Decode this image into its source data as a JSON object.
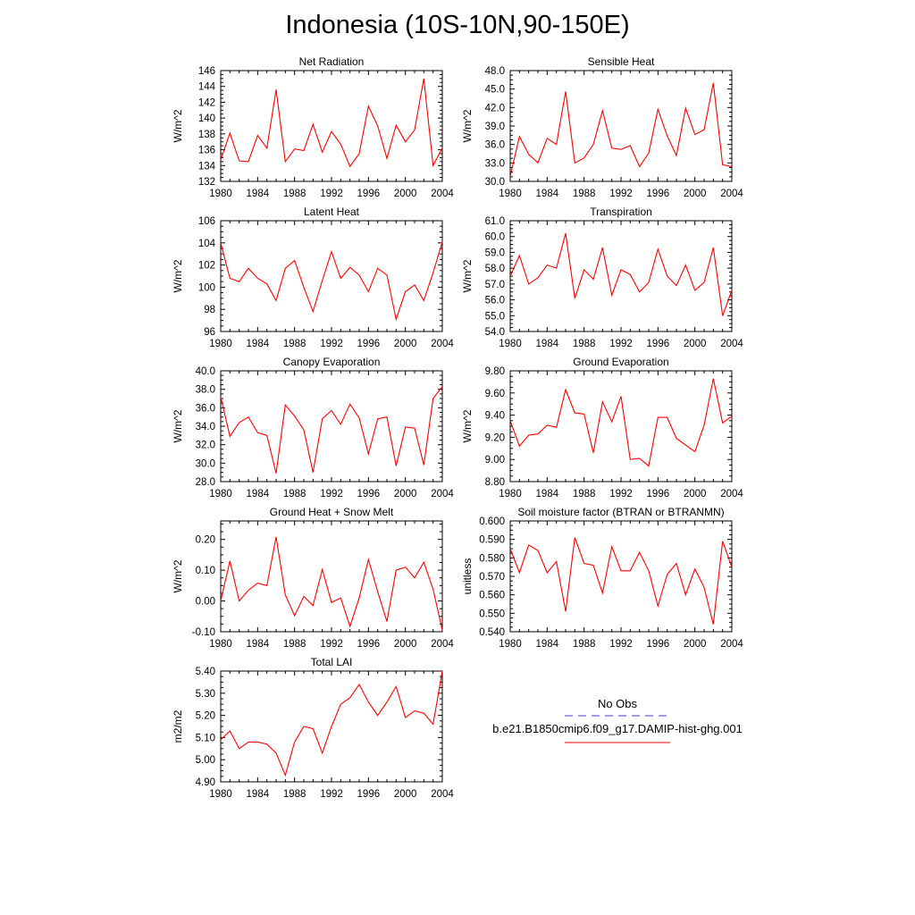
{
  "title": "Indonesia (10S-10N,90-150E)",
  "legend": {
    "items": [
      {
        "label": "No Obs",
        "color": "#3a3ad0",
        "dash": true
      },
      {
        "label": "b.e21.B1850cmip6.f09_g17.DAMIP-hist-ghg.001",
        "color": "#ff0000",
        "dash": false
      }
    ]
  },
  "chart_data": [
    {
      "type": "line",
      "title": "Net Radiation",
      "ylabel": "W/m^2",
      "xlim": [
        1980,
        2004
      ],
      "ylim": [
        132,
        146
      ],
      "xticks": [
        1980,
        1984,
        1988,
        1992,
        1996,
        2000,
        2004
      ],
      "yticks": [
        132,
        134,
        136,
        138,
        140,
        142,
        144,
        146
      ],
      "yfmt": 0,
      "series": [
        {
          "name": "b.e21.B1850cmip6.f09_g17.DAMIP-hist-ghg.001",
          "color": "#ff0000",
          "x": [
            1980,
            1981,
            1982,
            1983,
            1984,
            1985,
            1986,
            1987,
            1988,
            1989,
            1990,
            1991,
            1992,
            1993,
            1994,
            1995,
            1996,
            1997,
            1998,
            1999,
            2000,
            2001,
            2002,
            2003,
            2004
          ],
          "y": [
            134.7,
            138.1,
            134.6,
            134.5,
            137.8,
            136.2,
            143.6,
            134.5,
            136.1,
            135.9,
            139.2,
            135.7,
            138.3,
            136.7,
            133.9,
            135.5,
            141.5,
            139.0,
            134.9,
            139.1,
            137.0,
            138.5,
            145.0,
            134.0,
            136.2
          ]
        }
      ]
    },
    {
      "type": "line",
      "title": "Sensible Heat",
      "ylabel": "W/m^2",
      "xlim": [
        1980,
        2004
      ],
      "ylim": [
        30,
        48
      ],
      "xticks": [
        1980,
        1984,
        1988,
        1992,
        1996,
        2000,
        2004
      ],
      "yticks": [
        30,
        33,
        36,
        39,
        42,
        45,
        48
      ],
      "yfmt": 1,
      "series": [
        {
          "name": "b.e21.B1850cmip6.f09_g17.DAMIP-hist-ghg.001",
          "color": "#ff0000",
          "x": [
            1980,
            1981,
            1982,
            1983,
            1984,
            1985,
            1986,
            1987,
            1988,
            1989,
            1990,
            1991,
            1992,
            1993,
            1994,
            1995,
            1996,
            1997,
            1998,
            1999,
            2000,
            2001,
            2002,
            2003,
            2004
          ],
          "y": [
            30.8,
            37.3,
            34.4,
            33.0,
            37.0,
            36.0,
            44.6,
            33.0,
            33.8,
            36.0,
            41.5,
            35.4,
            35.2,
            35.8,
            32.4,
            34.6,
            41.7,
            37.4,
            34.2,
            41.9,
            37.6,
            38.4,
            46.0,
            32.7,
            32.4
          ]
        }
      ]
    },
    {
      "type": "line",
      "title": "Latent Heat",
      "ylabel": "W/m^2",
      "xlim": [
        1980,
        2004
      ],
      "ylim": [
        96,
        106
      ],
      "xticks": [
        1980,
        1984,
        1988,
        1992,
        1996,
        2000,
        2004
      ],
      "yticks": [
        96,
        98,
        100,
        102,
        104,
        106
      ],
      "yfmt": 0,
      "series": [
        {
          "name": "b.e21.B1850cmip6.f09_g17.DAMIP-hist-ghg.001",
          "color": "#ff0000",
          "x": [
            1980,
            1981,
            1982,
            1983,
            1984,
            1985,
            1986,
            1987,
            1988,
            1989,
            1990,
            1991,
            1992,
            1993,
            1994,
            1995,
            1996,
            1997,
            1998,
            1999,
            2000,
            2001,
            2002,
            2003,
            2004
          ],
          "y": [
            104.0,
            100.8,
            100.5,
            101.7,
            100.8,
            100.3,
            98.8,
            101.7,
            102.4,
            100.0,
            97.8,
            100.6,
            103.2,
            100.8,
            101.8,
            101.1,
            99.6,
            101.7,
            101.1,
            97.1,
            99.6,
            100.2,
            98.8,
            101.3,
            104.1
          ]
        }
      ]
    },
    {
      "type": "line",
      "title": "Transpiration",
      "ylabel": "W/m^2",
      "xlim": [
        1980,
        2004
      ],
      "ylim": [
        54,
        61
      ],
      "xticks": [
        1980,
        1984,
        1988,
        1992,
        1996,
        2000,
        2004
      ],
      "yticks": [
        54,
        55,
        56,
        57,
        58,
        59,
        60,
        61
      ],
      "yfmt": 1,
      "series": [
        {
          "name": "b.e21.B1850cmip6.f09_g17.DAMIP-hist-ghg.001",
          "color": "#ff0000",
          "x": [
            1980,
            1981,
            1982,
            1983,
            1984,
            1985,
            1986,
            1987,
            1988,
            1989,
            1990,
            1991,
            1992,
            1993,
            1994,
            1995,
            1996,
            1997,
            1998,
            1999,
            2000,
            2001,
            2002,
            2003,
            2004
          ],
          "y": [
            57.5,
            58.8,
            57.0,
            57.4,
            58.2,
            58.0,
            60.2,
            56.1,
            57.9,
            57.3,
            59.3,
            56.3,
            57.9,
            57.6,
            56.5,
            57.1,
            59.2,
            57.5,
            56.9,
            58.2,
            56.6,
            57.1,
            59.3,
            55.0,
            56.6
          ]
        }
      ]
    },
    {
      "type": "line",
      "title": "Canopy Evaporation",
      "ylabel": "W/m^2",
      "xlim": [
        1980,
        2004
      ],
      "ylim": [
        28,
        40
      ],
      "xticks": [
        1980,
        1984,
        1988,
        1992,
        1996,
        2000,
        2004
      ],
      "yticks": [
        28,
        30,
        32,
        34,
        36,
        38,
        40
      ],
      "yfmt": 1,
      "series": [
        {
          "name": "b.e21.B1850cmip6.f09_g17.DAMIP-hist-ghg.001",
          "color": "#ff0000",
          "x": [
            1980,
            1981,
            1982,
            1983,
            1984,
            1985,
            1986,
            1987,
            1988,
            1989,
            1990,
            1991,
            1992,
            1993,
            1994,
            1995,
            1996,
            1997,
            1998,
            1999,
            2000,
            2001,
            2002,
            2003,
            2004
          ],
          "y": [
            37.2,
            32.9,
            34.4,
            35.0,
            33.3,
            33.0,
            28.9,
            36.3,
            35.1,
            33.6,
            29.0,
            34.8,
            35.7,
            34.2,
            36.4,
            34.9,
            31.0,
            34.8,
            35.0,
            29.7,
            33.9,
            33.8,
            29.8,
            37.0,
            38.3
          ]
        }
      ]
    },
    {
      "type": "line",
      "title": "Ground Evaporation",
      "ylabel": "W/m^2",
      "xlim": [
        1980,
        2004
      ],
      "ylim": [
        8.8,
        9.8
      ],
      "xticks": [
        1980,
        1984,
        1988,
        1992,
        1996,
        2000,
        2004
      ],
      "yticks": [
        8.8,
        9.0,
        9.2,
        9.4,
        9.6,
        9.8
      ],
      "yfmt": 2,
      "series": [
        {
          "name": "b.e21.B1850cmip6.f09_g17.DAMIP-hist-ghg.001",
          "color": "#ff0000",
          "x": [
            1980,
            1981,
            1982,
            1983,
            1984,
            1985,
            1986,
            1987,
            1988,
            1989,
            1990,
            1991,
            1992,
            1993,
            1994,
            1995,
            1996,
            1997,
            1998,
            1999,
            2000,
            2001,
            2002,
            2003,
            2004
          ],
          "y": [
            9.35,
            9.12,
            9.22,
            9.23,
            9.31,
            9.29,
            9.63,
            9.42,
            9.41,
            9.06,
            9.52,
            9.34,
            9.57,
            9.0,
            9.01,
            8.94,
            9.38,
            9.38,
            9.19,
            9.13,
            9.07,
            9.31,
            9.73,
            9.33,
            9.39
          ]
        }
      ]
    },
    {
      "type": "line",
      "title": "Ground Heat + Snow Melt",
      "ylabel": "W/m^2",
      "xlim": [
        1980,
        2004
      ],
      "ylim": [
        -0.1,
        0.26
      ],
      "xticks": [
        1980,
        1984,
        1988,
        1992,
        1996,
        2000,
        2004
      ],
      "yticks": [
        -0.1,
        0.0,
        0.1,
        0.2
      ],
      "yfmt": 2,
      "series": [
        {
          "name": "b.e21.B1850cmip6.f09_g17.DAMIP-hist-ghg.001",
          "color": "#ff0000",
          "x": [
            1980,
            1981,
            1982,
            1983,
            1984,
            1985,
            1986,
            1987,
            1988,
            1989,
            1990,
            1991,
            1992,
            1993,
            1994,
            1995,
            1996,
            1997,
            1998,
            1999,
            2000,
            2001,
            2002,
            2003,
            2004
          ],
          "y": [
            0.0,
            0.13,
            0.0,
            0.035,
            0.058,
            0.05,
            0.208,
            0.02,
            -0.048,
            0.015,
            -0.015,
            0.102,
            -0.005,
            0.01,
            -0.083,
            0.01,
            0.135,
            0.03,
            -0.067,
            0.1,
            0.11,
            0.075,
            0.126,
            0.038,
            -0.095
          ]
        }
      ]
    },
    {
      "type": "line",
      "title": "Soil moisture factor (BTRAN or BTRANMN)",
      "ylabel": "unitless",
      "xlim": [
        1980,
        2004
      ],
      "ylim": [
        0.54,
        0.6
      ],
      "xticks": [
        1980,
        1984,
        1988,
        1992,
        1996,
        2000,
        2004
      ],
      "yticks": [
        0.54,
        0.55,
        0.56,
        0.57,
        0.58,
        0.59,
        0.6
      ],
      "yfmt": 3,
      "series": [
        {
          "name": "b.e21.B1850cmip6.f09_g17.DAMIP-hist-ghg.001",
          "color": "#ff0000",
          "x": [
            1980,
            1981,
            1982,
            1983,
            1984,
            1985,
            1986,
            1987,
            1988,
            1989,
            1990,
            1991,
            1992,
            1993,
            1994,
            1995,
            1996,
            1997,
            1998,
            1999,
            2000,
            2001,
            2002,
            2003,
            2004
          ],
          "y": [
            0.585,
            0.572,
            0.587,
            0.584,
            0.572,
            0.578,
            0.551,
            0.591,
            0.577,
            0.576,
            0.561,
            0.586,
            0.573,
            0.573,
            0.583,
            0.573,
            0.554,
            0.571,
            0.577,
            0.56,
            0.574,
            0.564,
            0.544,
            0.589,
            0.575
          ]
        }
      ]
    },
    {
      "type": "line",
      "title": "Total LAI",
      "ylabel": "m2/m2",
      "xlim": [
        1980,
        2004
      ],
      "ylim": [
        4.9,
        5.4
      ],
      "xticks": [
        1980,
        1984,
        1988,
        1992,
        1996,
        2000,
        2004
      ],
      "yticks": [
        4.9,
        5.0,
        5.1,
        5.2,
        5.3,
        5.4
      ],
      "yfmt": 2,
      "series": [
        {
          "name": "b.e21.B1850cmip6.f09_g17.DAMIP-hist-ghg.001",
          "color": "#ff0000",
          "x": [
            1980,
            1981,
            1982,
            1983,
            1984,
            1985,
            1986,
            1987,
            1988,
            1989,
            1990,
            1991,
            1992,
            1993,
            1994,
            1995,
            1996,
            1997,
            1998,
            1999,
            2000,
            2001,
            2002,
            2003,
            2004
          ],
          "y": [
            5.09,
            5.13,
            5.05,
            5.08,
            5.08,
            5.07,
            5.03,
            4.93,
            5.08,
            5.15,
            5.14,
            5.03,
            5.15,
            5.25,
            5.28,
            5.34,
            5.26,
            5.2,
            5.26,
            5.33,
            5.19,
            5.22,
            5.21,
            5.16,
            5.4
          ]
        }
      ]
    }
  ]
}
